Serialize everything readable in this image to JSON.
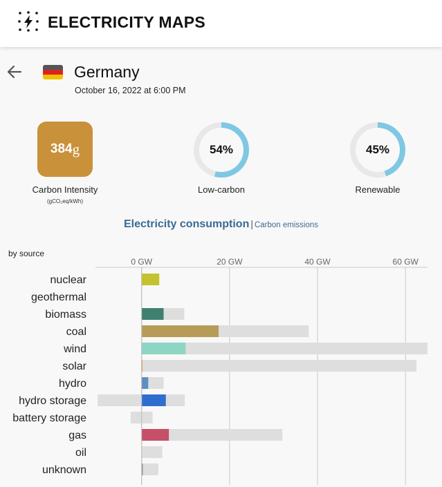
{
  "app": {
    "title": "ELECTRICITY MAPS"
  },
  "zone": {
    "name": "Germany",
    "timestamp": "October 16, 2022 at 6:00 PM",
    "flag_colors": [
      "#555555",
      "#dd2222",
      "#f2c200"
    ]
  },
  "carbon_intensity": {
    "value": "384",
    "unit": "g",
    "label": "Carbon Intensity",
    "sublabel": "(gCO₂eq/kWh)",
    "color": "#c9913a"
  },
  "low_carbon": {
    "value": "54%",
    "fraction": 0.54,
    "label": "Low-carbon"
  },
  "renewable": {
    "value": "45%",
    "fraction": 0.45,
    "label": "Renewable"
  },
  "gauge_colors": {
    "track": "#e8e8e8",
    "fill": "#7ec8e3"
  },
  "section": {
    "primary": "Electricity consumption",
    "separator": "|",
    "secondary": "Carbon emissions"
  },
  "by_source_label": "by source",
  "chart_data": {
    "type": "bar",
    "orientation": "horizontal",
    "xlim": [
      -10.5,
      65
    ],
    "x_ticks": [
      0,
      20,
      40,
      60
    ],
    "x_tick_labels": [
      "0 GW",
      "20 GW",
      "40 GW",
      "60 GW"
    ],
    "categories": [
      "nuclear",
      "geothermal",
      "biomass",
      "coal",
      "wind",
      "solar",
      "hydro",
      "hydro storage",
      "battery storage",
      "gas",
      "oil",
      "unknown"
    ],
    "series": [
      {
        "values": [
          4,
          0,
          5,
          17.5,
          10,
          0.2,
          1.5,
          5.5,
          0,
          6.2,
          0,
          0.3
        ]
      },
      {
        "values": [
          4,
          0,
          9.7,
          38,
          65,
          62.5,
          5,
          9.8,
          2.5,
          32,
          4.7,
          3.8
        ]
      },
      {
        "values": [
          0,
          0,
          0,
          0,
          0,
          0,
          0,
          -10,
          -2.5,
          0,
          0,
          0
        ]
      }
    ],
    "colors": [
      "#c4c22e",
      "#888888",
      "#3f8170",
      "#b69c56",
      "#8fd5c3",
      "#f1a12e",
      "#5f8ec3",
      "#2f6ecf",
      "#888888",
      "#c55068",
      "#888888",
      "#9a9a9a"
    ],
    "capacity_color": "#dedede",
    "grid": true
  }
}
